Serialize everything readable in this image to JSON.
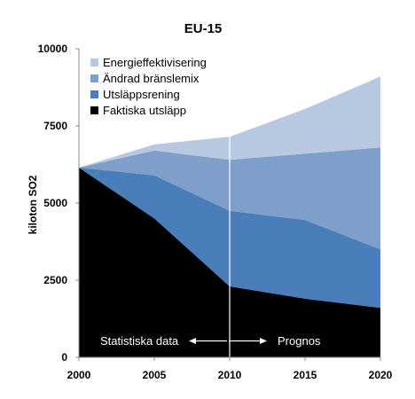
{
  "chart_data": {
    "type": "area",
    "stacked": true,
    "title": "EU-15",
    "ylabel": "kiloton  SO2",
    "xlabel": "",
    "x": [
      2000,
      2005,
      2010,
      2015,
      2020
    ],
    "xlim": [
      2000,
      2020
    ],
    "ylim": [
      0,
      10000
    ],
    "x_ticks": [
      "2000",
      "2005",
      "2010",
      "2015",
      "2020"
    ],
    "y_ticks": [
      "0",
      "2500",
      "5000",
      "7500",
      "10000"
    ],
    "grid": false,
    "legend_position": "top-left",
    "divider_x": 2010,
    "series": [
      {
        "name": "Faktiska utsläpp",
        "color": "#000000",
        "values": [
          6150,
          4500,
          2300,
          1900,
          1600
        ]
      },
      {
        "name": "Utsläppsrening",
        "color": "#4a7ebb",
        "values": [
          0,
          1400,
          2450,
          2550,
          1900
        ]
      },
      {
        "name": "Ändrad bränslemix",
        "color": "#7f9fcb",
        "values": [
          0,
          800,
          1650,
          2150,
          3300
        ]
      },
      {
        "name": "Energieffektivisering",
        "color": "#b9c8e1",
        "values": [
          0,
          200,
          750,
          1450,
          2300
        ]
      }
    ],
    "annotations": {
      "left_label": "Statistiska data",
      "right_label": "Prognos"
    }
  }
}
